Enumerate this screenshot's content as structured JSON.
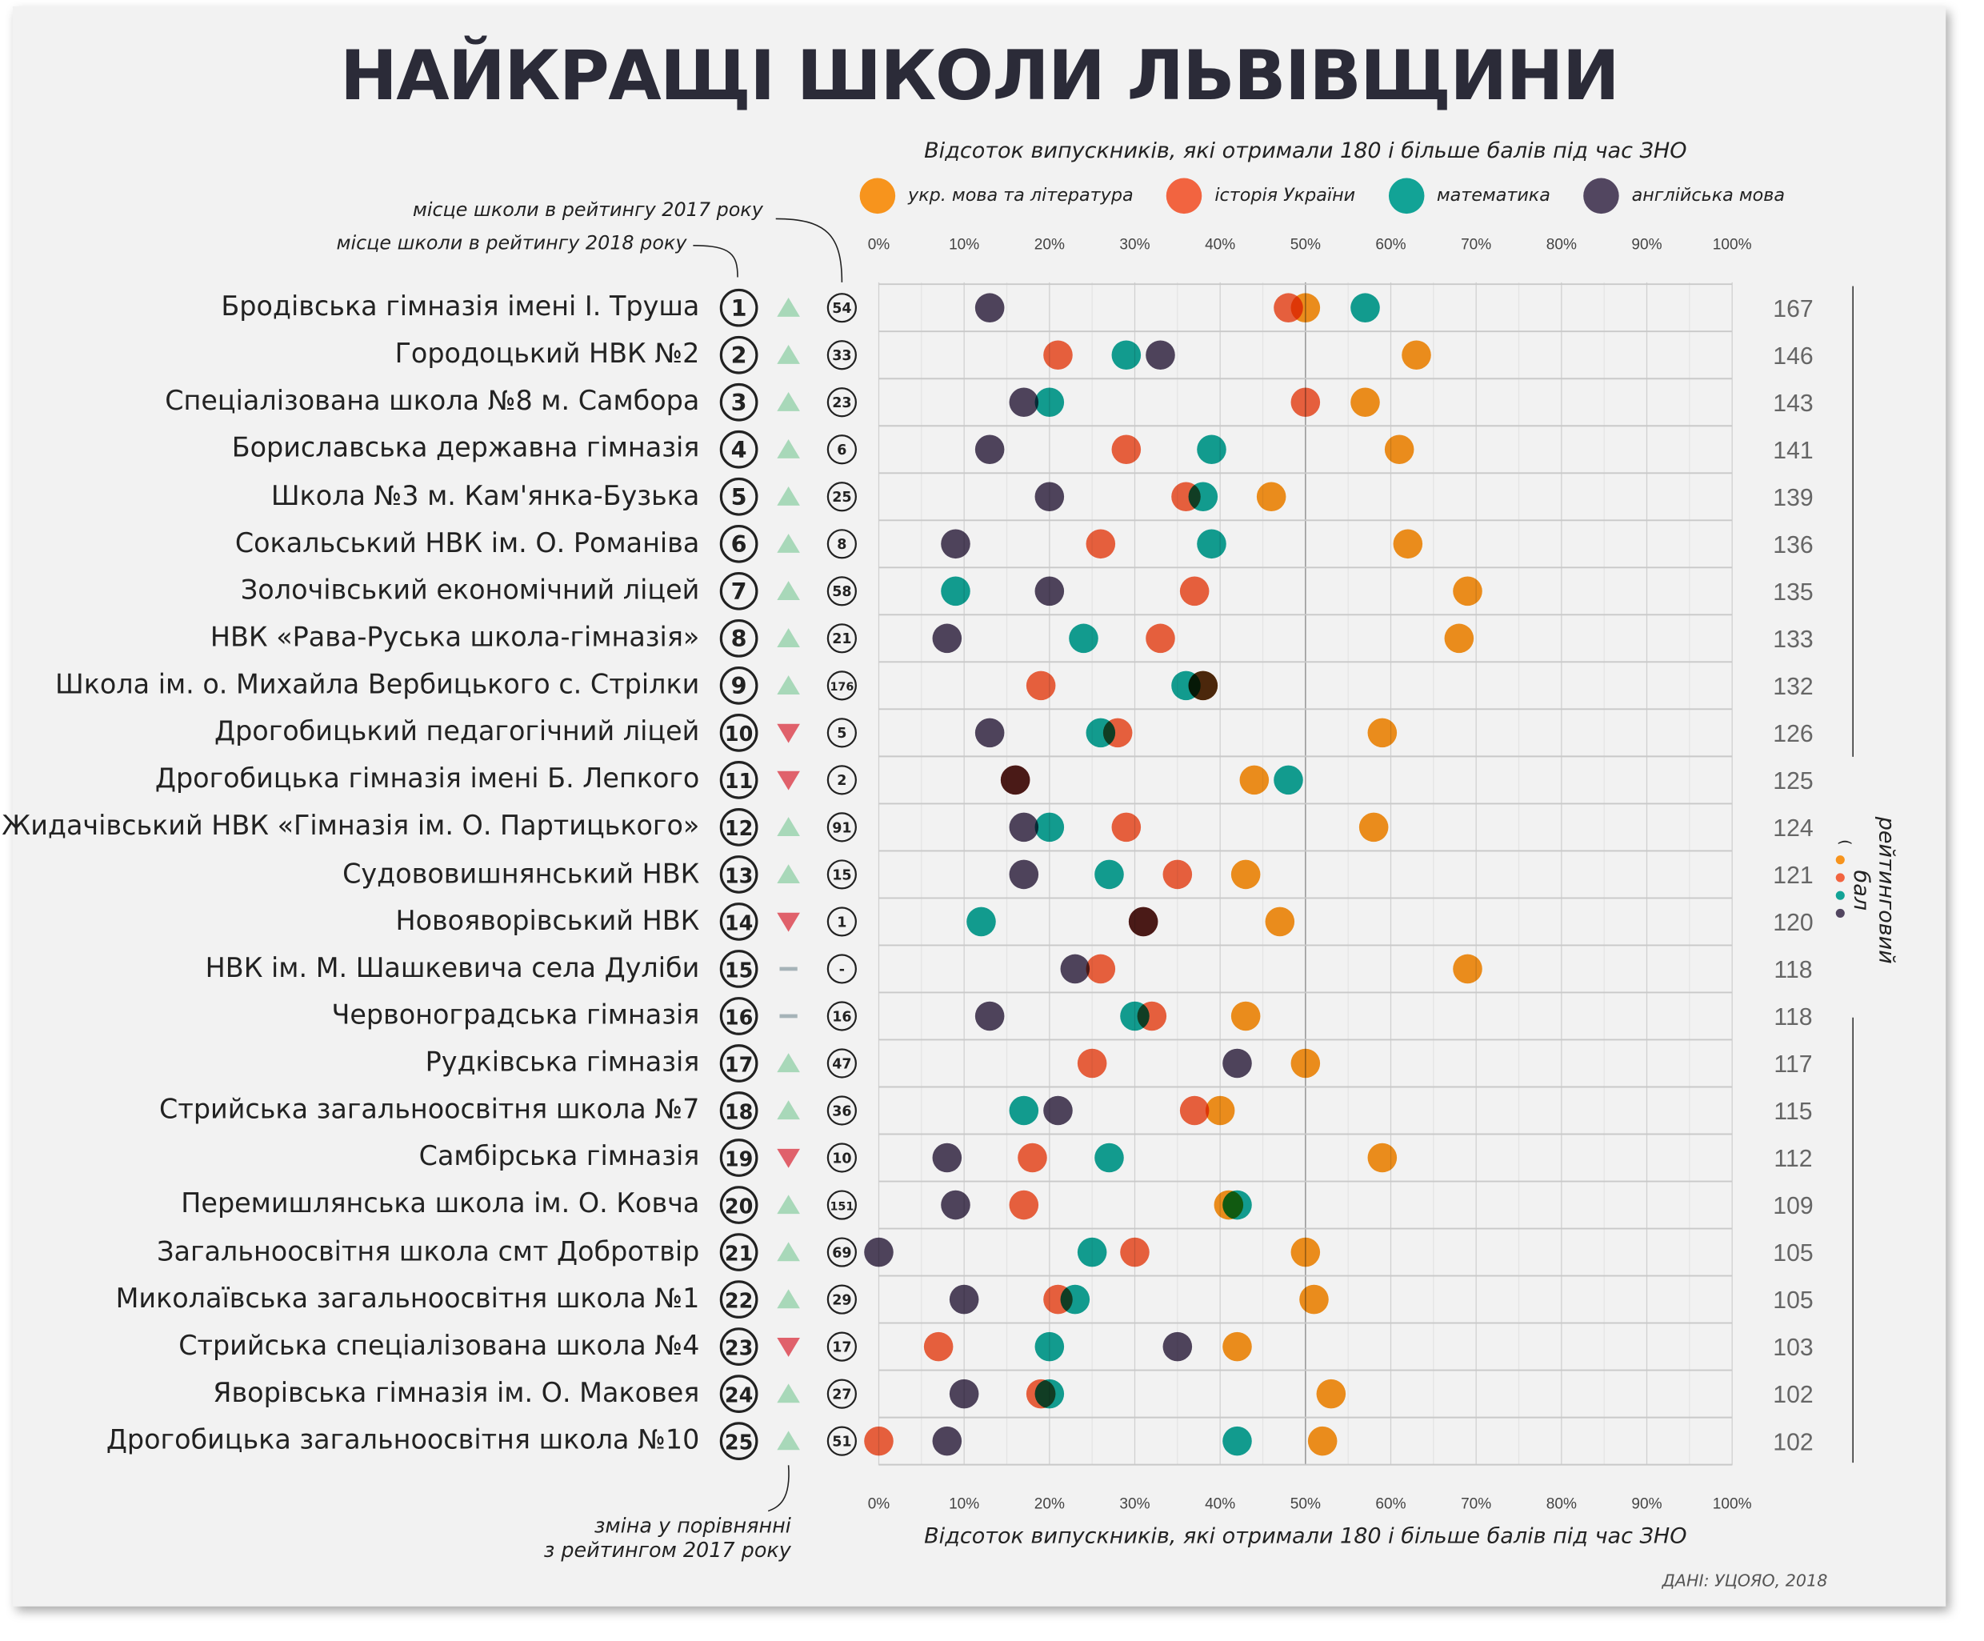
{
  "title": "НАЙКРАЩІ ШКОЛИ ЛЬВІВЩИНИ",
  "annotations": {
    "rank2017": "місце школи в рейтингу 2017 року",
    "rank2018": "місце школи в рейтингу 2018 року",
    "change": "зміна у порівнянні з рейтингом 2017 року",
    "change_line1": "зміна у порівнянні",
    "change_line2": "з рейтингом 2017 року",
    "score_axis": "рейтинговий бал",
    "score_formula": "(●+●+●+●)",
    "source": "ДАНІ: УЦОЯО, 2018"
  },
  "chart_data": {
    "type": "scatter",
    "title": "Відсоток випускників, які отримали 180 і більше балів під час ЗНО",
    "xlabel": "Відсоток випускників, які отримали 180 і більше балів під час ЗНО",
    "xlim": [
      0,
      100
    ],
    "xticks": [
      "0%",
      "10%",
      "20%",
      "30%",
      "40%",
      "50%",
      "60%",
      "70%",
      "80%",
      "90%",
      "100%"
    ],
    "grid": true,
    "legend_placement": "top",
    "series": [
      {
        "name": "укр. мова та література",
        "key": "ukr",
        "color": "#f7941d"
      },
      {
        "name": "історія України",
        "key": "hist",
        "color": "#f26440"
      },
      {
        "name": "математика",
        "key": "math",
        "color": "#12a396"
      },
      {
        "name": "англійська мова",
        "key": "eng",
        "color": "#524660"
      }
    ],
    "rows": [
      {
        "school": "Бродівська гімназія імені І. Труша",
        "rank": "1",
        "change": "up",
        "rank2017": "54",
        "score": "167",
        "ukr": 50,
        "hist": 48,
        "math": 57,
        "eng": 13
      },
      {
        "school": "Городоцький НВК №2",
        "rank": "2",
        "change": "up",
        "rank2017": "33",
        "score": "146",
        "ukr": 63,
        "hist": 21,
        "math": 29,
        "eng": 33
      },
      {
        "school": "Спеціалізована школа №8 м. Самбора",
        "rank": "3",
        "change": "up",
        "rank2017": "23",
        "score": "143",
        "ukr": 57,
        "hist": 50,
        "math": 20,
        "eng": 17
      },
      {
        "school": "Бориславська державна гімназія",
        "rank": "4",
        "change": "up",
        "rank2017": "6",
        "score": "141",
        "ukr": 61,
        "hist": 29,
        "math": 39,
        "eng": 13
      },
      {
        "school": "Школа №3 м. Кам'янка-Бузька",
        "rank": "5",
        "change": "up",
        "rank2017": "25",
        "score": "139",
        "ukr": 46,
        "hist": 36,
        "math": 38,
        "eng": 20
      },
      {
        "school": "Сокальський НВК ім. О. Романіва",
        "rank": "6",
        "change": "up",
        "rank2017": "8",
        "score": "136",
        "ukr": 62,
        "hist": 26,
        "math": 39,
        "eng": 9
      },
      {
        "school": "Золочівський економічний ліцей",
        "rank": "7",
        "change": "up",
        "rank2017": "58",
        "score": "135",
        "ukr": 69,
        "hist": 37,
        "math": 9,
        "eng": 20
      },
      {
        "school": "НВК «Рава-Руська школа-гімназія»",
        "rank": "8",
        "change": "up",
        "rank2017": "21",
        "score": "133",
        "ukr": 68,
        "hist": 33,
        "math": 24,
        "eng": 8
      },
      {
        "school": "Школа ім. о. Михайла Вербицького с. Стрілки",
        "rank": "9",
        "change": "up",
        "rank2017": "176",
        "score": "132",
        "ukr": 38,
        "hist": 19,
        "math": 36,
        "eng": 38
      },
      {
        "school": "Дрогобицький педагогічний ліцей",
        "rank": "10",
        "change": "down",
        "rank2017": "5",
        "score": "126",
        "ukr": 59,
        "hist": 28,
        "math": 26,
        "eng": 13
      },
      {
        "school": "Дрогобицька гімназія імені Б. Лепкого",
        "rank": "11",
        "change": "down",
        "rank2017": "2",
        "score": "125",
        "ukr": 44,
        "hist": 16,
        "math": 48,
        "eng": 16
      },
      {
        "school": "Жидачівський НВК «Гімназія ім. О. Партицького»",
        "rank": "12",
        "change": "up",
        "rank2017": "91",
        "score": "124",
        "ukr": 58,
        "hist": 29,
        "math": 20,
        "eng": 17
      },
      {
        "school": "Судововишнянський НВК",
        "rank": "13",
        "change": "up",
        "rank2017": "15",
        "score": "121",
        "ukr": 43,
        "hist": 35,
        "math": 27,
        "eng": 17
      },
      {
        "school": "Новояворівський НВК",
        "rank": "14",
        "change": "down",
        "rank2017": "1",
        "score": "120",
        "ukr": 47,
        "hist": 31,
        "math": 12,
        "eng": 31
      },
      {
        "school": "НВК ім. М. Шашкевича села Дуліби",
        "rank": "15",
        "change": "same",
        "rank2017": "-",
        "score": "118",
        "ukr": 69,
        "hist": 26,
        "math": null,
        "eng": 23
      },
      {
        "school": "Червоноградська гімназія",
        "rank": "16",
        "change": "same",
        "rank2017": "16",
        "score": "118",
        "ukr": 43,
        "hist": 32,
        "math": 30,
        "eng": 13
      },
      {
        "school": "Рудківська гімназія",
        "rank": "17",
        "change": "up",
        "rank2017": "47",
        "score": "117",
        "ukr": 50,
        "hist": 25,
        "math": null,
        "eng": 42
      },
      {
        "school": "Стрийська загальноосвітня школа №7",
        "rank": "18",
        "change": "up",
        "rank2017": "36",
        "score": "115",
        "ukr": 40,
        "hist": 37,
        "math": 17,
        "eng": 21
      },
      {
        "school": "Самбірська гімназія",
        "rank": "19",
        "change": "down",
        "rank2017": "10",
        "score": "112",
        "ukr": 59,
        "hist": 18,
        "math": 27,
        "eng": 8
      },
      {
        "school": "Перемишлянська школа ім. О. Ковча",
        "rank": "20",
        "change": "up",
        "rank2017": "151",
        "score": "109",
        "ukr": 41,
        "hist": 17,
        "math": 42,
        "eng": 9
      },
      {
        "school": "Загальноосвітня школа смт Добротвір",
        "rank": "21",
        "change": "up",
        "rank2017": "69",
        "score": "105",
        "ukr": 50,
        "hist": 30,
        "math": 25,
        "eng": 0
      },
      {
        "school": "Миколаївська загальноосвітня школа №1",
        "rank": "22",
        "change": "up",
        "rank2017": "29",
        "score": "105",
        "ukr": 51,
        "hist": 21,
        "math": 23,
        "eng": 10
      },
      {
        "school": "Стрийська спеціалізована школа №4",
        "rank": "23",
        "change": "down",
        "rank2017": "17",
        "score": "103",
        "ukr": 42,
        "hist": 7,
        "math": 20,
        "eng": 35
      },
      {
        "school": "Яворівська гімназія ім. О. Маковея",
        "rank": "24",
        "change": "up",
        "rank2017": "27",
        "score": "102",
        "ukr": 53,
        "hist": 19,
        "math": 20,
        "eng": 10
      },
      {
        "school": "Дрогобицька загальноосвітня школа №10",
        "rank": "25",
        "change": "up",
        "rank2017": "51",
        "score": "102",
        "ukr": 52,
        "hist": 0,
        "math": 42,
        "eng": 8
      }
    ]
  },
  "colors": {
    "up": "#a8d8b9",
    "down": "#e0616b",
    "same": "#a6b3b8",
    "title": "#2b2b38",
    "background": "#f2f2f2"
  }
}
